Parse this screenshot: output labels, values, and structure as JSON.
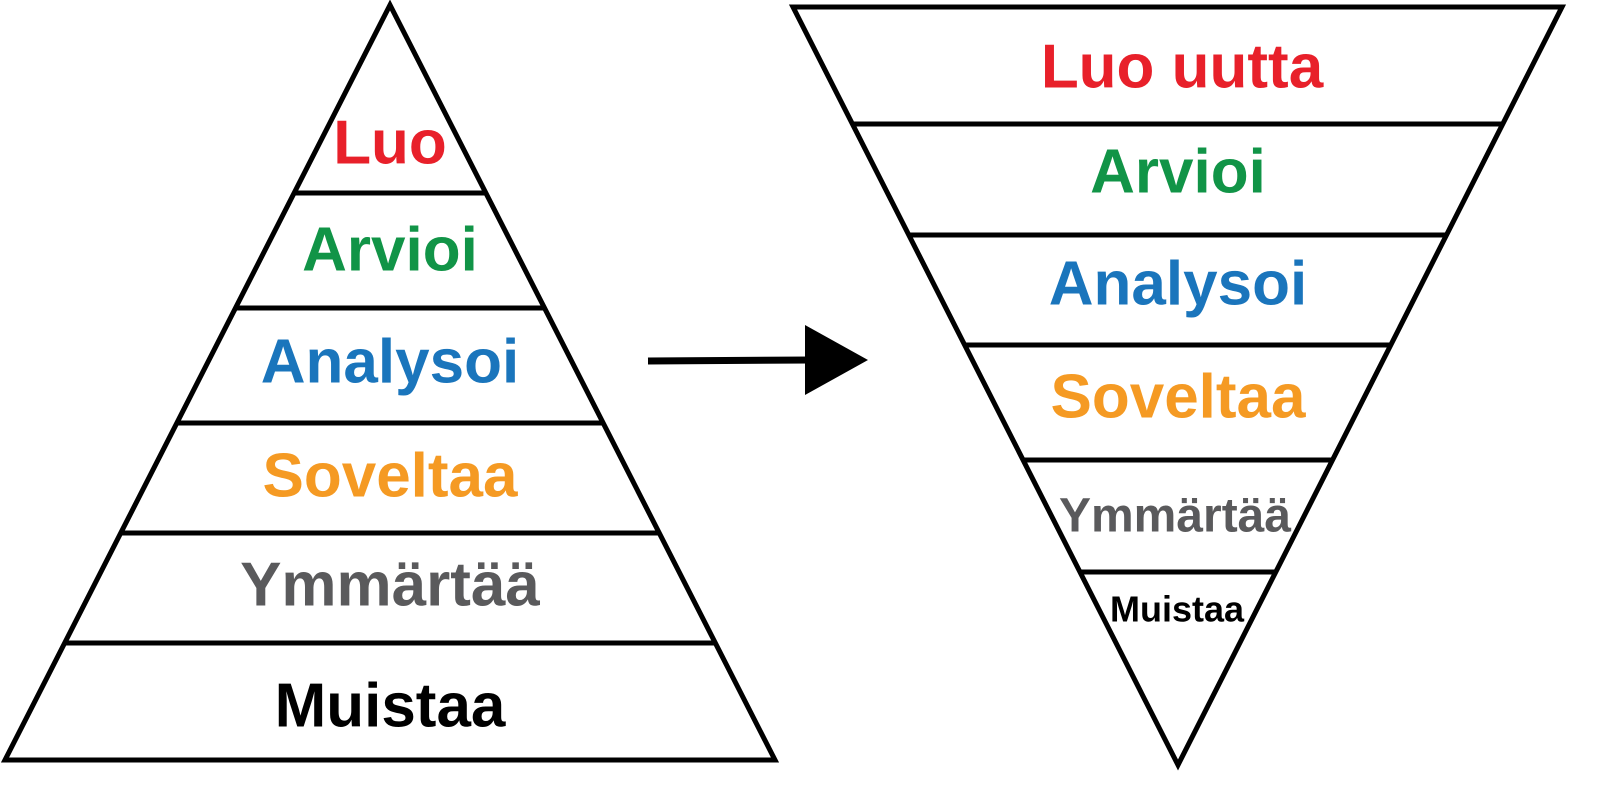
{
  "left_pyramid": {
    "levels": [
      "Luo",
      "Arvioi",
      "Analysoi",
      "Soveltaa",
      "Ymmärtää",
      "Muistaa"
    ]
  },
  "right_pyramid": {
    "levels": [
      "Luo uutta",
      "Arvioi",
      "Analysoi",
      "Soveltaa",
      "Ymmärtää",
      "Muistaa"
    ]
  }
}
